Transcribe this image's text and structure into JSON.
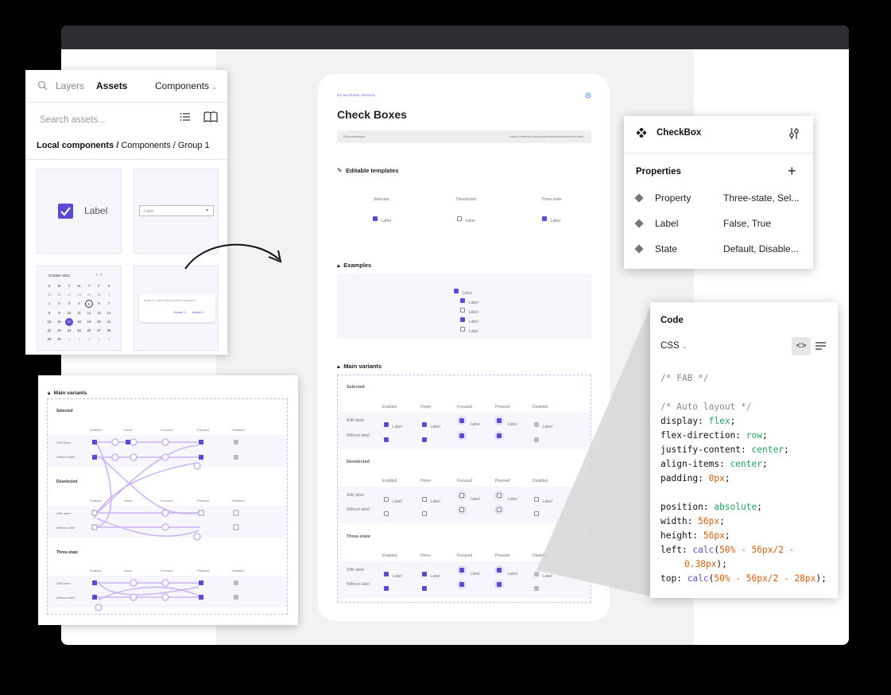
{
  "assets": {
    "tab_layers": "Layers",
    "tab_assets": "Assets",
    "dropdown": "Components",
    "search_placeholder": "Search assets...",
    "path_bold": "Local components /",
    "path_rest": "Components / Group 1",
    "tile_label": "Label",
    "tile_select_value": "Label",
    "calendar": {
      "month": "October 2021",
      "weekdays": [
        "S",
        "M",
        "T",
        "W",
        "T",
        "F",
        "S"
      ],
      "rows": [
        [
          "25",
          "26",
          "27",
          "28",
          "29",
          "30",
          "1"
        ],
        [
          "1",
          "2",
          "3",
          "4",
          "5",
          "6",
          "7"
        ],
        [
          "8",
          "9",
          "10",
          "11",
          "12",
          "13",
          "14"
        ],
        [
          "15",
          "16",
          "17",
          "18",
          "19",
          "20",
          "21"
        ],
        [
          "22",
          "23",
          "24",
          "25",
          "26",
          "27",
          "28"
        ],
        [
          "29",
          "30",
          "1",
          "2",
          "3",
          "4",
          "5"
        ]
      ]
    },
    "dialog_text": "Body 3: Lorem ipsum dolor sit amet?",
    "dialog_action1": "Action 1",
    "dialog_action2": "Action 2"
  },
  "frame": {
    "brand": "M3 MATERIAL DESIGN",
    "title": "Check Boxes",
    "doc_label": "Documentation",
    "doc_link": "https://material.io/components/checkboxes/overview",
    "editable_title": "Editable templates",
    "editable_cols": [
      "Selected",
      "Deselected",
      "Three-state"
    ],
    "cb_label": "Label",
    "examples_title": "Examples",
    "main_title": "Main variants",
    "groups": [
      "Selected",
      "Deselected",
      "Three-state"
    ],
    "state_cols": [
      "Enabled",
      "Hover",
      "Focused",
      "Pressed",
      "Disabled"
    ],
    "row_labels": [
      "With label",
      "Without label"
    ]
  },
  "variants_card": {
    "title": "Main variants"
  },
  "props": {
    "component": "CheckBox",
    "section": "Properties",
    "rows": [
      {
        "name": "Property",
        "value": "Three-state, Sel..."
      },
      {
        "name": "Label",
        "value": "False, True"
      },
      {
        "name": "State",
        "value": "Default, Disable..."
      }
    ]
  },
  "code": {
    "title": "Code",
    "lang": "CSS",
    "comment1": "/* FAB */",
    "comment2": "/* Auto layout */",
    "lines": [
      {
        "prop": "display: ",
        "val": "flex",
        "cls": "c-grn"
      },
      {
        "prop": "flex-direction: ",
        "val": "row",
        "cls": "c-grn"
      },
      {
        "prop": "justify-content: ",
        "val": "center",
        "cls": "c-grn"
      },
      {
        "prop": "align-items: ",
        "val": "center",
        "cls": "c-grn"
      },
      {
        "prop": "padding: ",
        "val": "0px",
        "cls": "c-org"
      },
      {
        "prop": "position: ",
        "val": "absolute",
        "cls": "c-grn"
      },
      {
        "prop": "width: ",
        "val": "56px",
        "cls": "c-org"
      },
      {
        "prop": "height: ",
        "val": "56px",
        "cls": "c-org"
      }
    ],
    "left_prop": "left: ",
    "left_fn": "calc",
    "left_args": "50% - 56px/2 -",
    "left_cont": "0.38px",
    "top_prop": "top: ",
    "top_fn": "calc",
    "top_args": "50% - 56px/2 - 28px"
  },
  "colors": {
    "accent": "#5b4ad4",
    "titlebar": "#2c2c31",
    "canvas": "#f2f2f2"
  }
}
